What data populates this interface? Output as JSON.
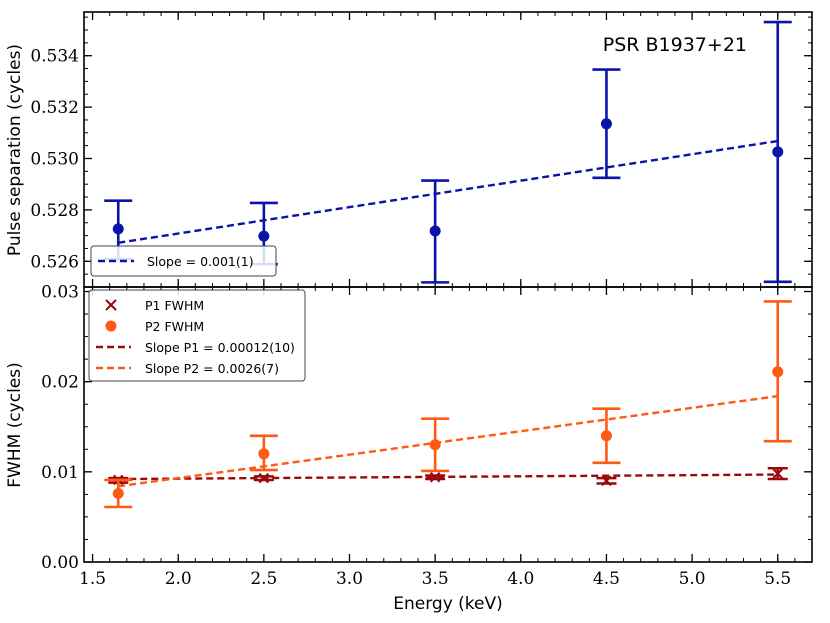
{
  "chart_data": [
    {
      "type": "scatter",
      "panel": "top",
      "annotation": "PSR B1937+21",
      "xlabel": "Energy (keV)",
      "ylabel": "Pulse separation (cycles)",
      "xlim": [
        1.45,
        5.7
      ],
      "ylim": [
        0.525,
        0.5357
      ],
      "xticks": [
        1.5,
        2.0,
        2.5,
        3.0,
        3.5,
        4.0,
        4.5,
        5.0,
        5.5
      ],
      "xtick_labels": [
        "1.5",
        "2.0",
        "2.5",
        "3.0",
        "3.5",
        "4.0",
        "4.5",
        "5.0",
        "5.5"
      ],
      "yticks": [
        0.526,
        0.528,
        0.53,
        0.532,
        0.534
      ],
      "ytick_labels": [
        "0.526",
        "0.528",
        "0.530",
        "0.532",
        "0.534"
      ],
      "legend_location": "lower-left",
      "series": [
        {
          "name": "Pulse separation",
          "color": "#0a14a8",
          "x": [
            1.65,
            2.5,
            3.5,
            4.5,
            5.5
          ],
          "y": [
            0.52726,
            0.52698,
            0.52718,
            0.53135,
            0.53026
          ],
          "err_low": [
            0.52608,
            0.52589,
            0.52518,
            0.52925,
            0.5252
          ],
          "err_high": [
            0.52836,
            0.52827,
            0.52914,
            0.53346,
            0.53531
          ]
        }
      ],
      "fits": [
        {
          "name": "Slope = 0.001(1)",
          "color": "#0a14a8",
          "x": [
            1.65,
            5.5
          ],
          "y": [
            0.52672,
            0.53068
          ]
        }
      ],
      "legend": [
        "Slope = 0.001(1)"
      ]
    },
    {
      "type": "scatter",
      "panel": "bottom",
      "xlabel": "Energy (keV)",
      "ylabel": "FWHM (cycles)",
      "xlim": [
        1.45,
        5.7
      ],
      "ylim": [
        0.0,
        0.0305
      ],
      "xticks": [
        1.5,
        2.0,
        2.5,
        3.0,
        3.5,
        4.0,
        4.5,
        5.0,
        5.5
      ],
      "xtick_labels": [
        "1.5",
        "2.0",
        "2.5",
        "3.0",
        "3.5",
        "4.0",
        "4.5",
        "5.0",
        "5.5"
      ],
      "yticks": [
        0.0,
        0.01,
        0.02,
        0.03
      ],
      "ytick_labels": [
        "0.00",
        "0.01",
        "0.02",
        "0.03"
      ],
      "legend_location": "top-left",
      "series": [
        {
          "name": "P1 FWHM",
          "marker": "x",
          "color": "#9b0a0a",
          "x": [
            1.65,
            2.5,
            3.5,
            4.5,
            5.5
          ],
          "y": [
            0.0091,
            0.0093,
            0.0094,
            0.009,
            0.0098
          ],
          "err_low": [
            0.0088,
            0.0091,
            0.0092,
            0.0087,
            0.0092
          ],
          "err_high": [
            0.0093,
            0.0095,
            0.0096,
            0.0093,
            0.0104
          ]
        },
        {
          "name": "P2 FWHM",
          "marker": "o",
          "color": "#ff5a14",
          "x": [
            1.65,
            2.5,
            3.5,
            4.5,
            5.5
          ],
          "y": [
            0.0076,
            0.012,
            0.013,
            0.014,
            0.0211
          ],
          "err_low": [
            0.0061,
            0.0102,
            0.0101,
            0.011,
            0.0134
          ],
          "err_high": [
            0.0091,
            0.014,
            0.0159,
            0.017,
            0.0289
          ]
        }
      ],
      "fits": [
        {
          "name": "Slope P1 = 0.00012(10)",
          "color": "#9b0a0a",
          "x": [
            1.65,
            5.5
          ],
          "y": [
            0.0092,
            0.0097
          ]
        },
        {
          "name": "Slope P2 = 0.0026(7)",
          "color": "#ff5a14",
          "x": [
            1.65,
            5.5
          ],
          "y": [
            0.0084,
            0.0184
          ]
        }
      ],
      "legend": [
        "P1 FWHM",
        "P2 FWHM",
        "Slope P1 = 0.00012(10)",
        "Slope P2 = 0.0026(7)"
      ]
    }
  ]
}
